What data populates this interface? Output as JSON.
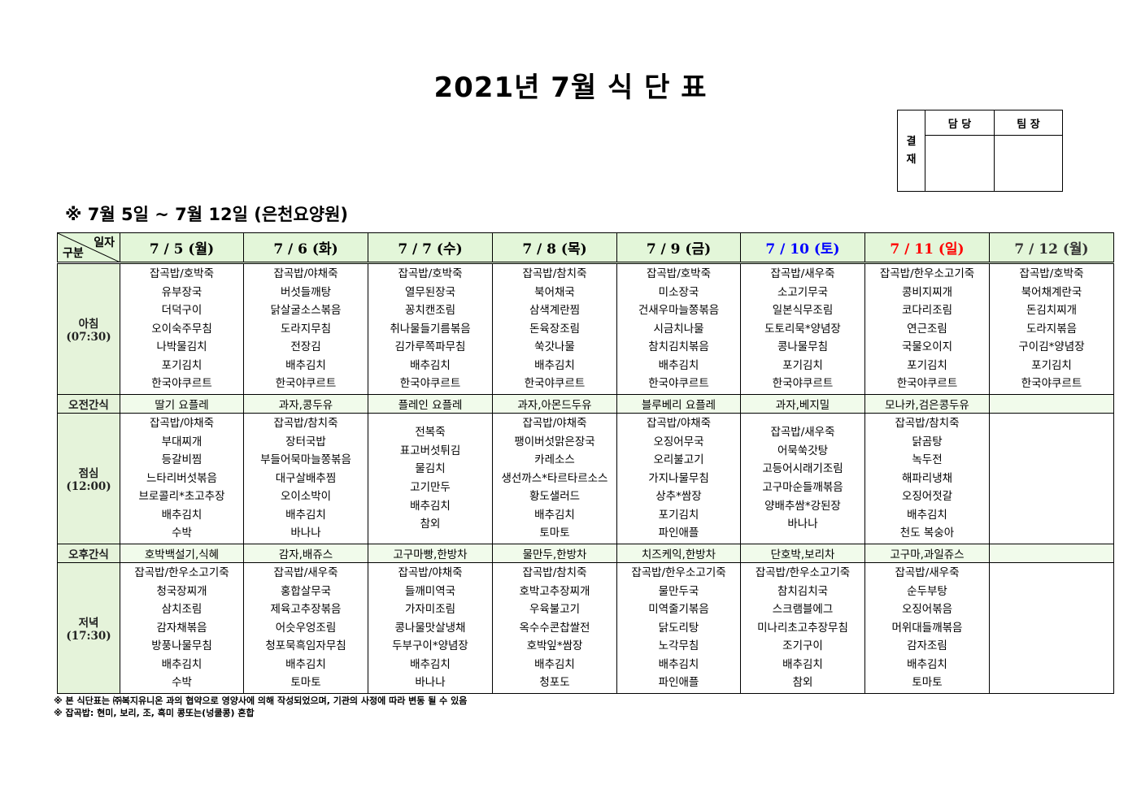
{
  "title": "2021년 7월 식 단 표",
  "approval": {
    "label": "결\n재",
    "label_lines": [
      "결",
      "재"
    ],
    "col1": "담 당",
    "col2": "팀 장"
  },
  "range": "※ 7월 5일 ~ 7월 12일 (은천요양원)",
  "colors": {
    "header_bg": "#e3f6d9",
    "saturday": "#0000ff",
    "sunday": "#ff0000",
    "snack_bg": "#f1fbeb"
  },
  "corner": {
    "top": "일자",
    "bottom": "구분"
  },
  "days": [
    {
      "label": "7 / 5 (월)",
      "color": "#000000"
    },
    {
      "label": "7 / 6 (화)",
      "color": "#000000"
    },
    {
      "label": "7 / 7 (수)",
      "color": "#000000"
    },
    {
      "label": "7 / 8 (목)",
      "color": "#000000"
    },
    {
      "label": "7 / 9 (금)",
      "color": "#000000"
    },
    {
      "label": "7 / 10 (토)",
      "color": "#0000ff"
    },
    {
      "label": "7 / 11 (일)",
      "color": "#ff0000"
    },
    {
      "label": "7 / 12 (월)",
      "color": "#333333"
    }
  ],
  "rows": [
    {
      "type": "meal",
      "name": "아침",
      "time": "(07:30)",
      "cells": [
        [
          "잡곡밥/호박죽",
          "유부장국",
          "더덕구이",
          "오이숙주무침",
          "나박물김치",
          "포기김치",
          "한국야쿠르트"
        ],
        [
          "잡곡밥/야채죽",
          "버섯들깨탕",
          "닭살굴소스볶음",
          "도라지무침",
          "전장김",
          "배추김치",
          "한국야쿠르트"
        ],
        [
          "잡곡밥/호박죽",
          "열무된장국",
          "꽁치캔조림",
          "취나물들기름볶음",
          "김가루쪽파무침",
          "배추김치",
          "한국야쿠르트"
        ],
        [
          "잡곡밥/참치죽",
          "북어채국",
          "삼색계란찜",
          "돈육장조림",
          "쑥갓나물",
          "배추김치",
          "한국야쿠르트"
        ],
        [
          "잡곡밥/호박죽",
          "미소장국",
          "건새우마늘쫑볶음",
          "시금치나물",
          "참치김치볶음",
          "배추김치",
          "한국야쿠르트"
        ],
        [
          "잡곡밥/새우죽",
          "소고기무국",
          "일본식무조림",
          "도토리묵*양념장",
          "콩나물무침",
          "포기김치",
          "한국야쿠르트"
        ],
        [
          "잡곡밥/한우소고기죽",
          "콩비지찌개",
          "코다리조림",
          "연근조림",
          "국물오이지",
          "포기김치",
          "한국야쿠르트"
        ],
        [
          "잡곡밥/호박죽",
          "북어채계란국",
          "돈김치찌개",
          "도라지볶음",
          "구이김*양념장",
          "포기김치",
          "한국야쿠르트"
        ]
      ]
    },
    {
      "type": "snack",
      "name": "오전간식",
      "cells": [
        "딸기 요플레",
        "과자,콩두유",
        "플레인 요플레",
        "과자,아몬드두유",
        "블루베리 요플레",
        "과자,베지밀",
        "모나카,검은콩두유",
        ""
      ]
    },
    {
      "type": "meal",
      "name": "점심",
      "time": "(12:00)",
      "cells": [
        [
          "잡곡밥/야채죽",
          "부대찌개",
          "등갈비찜",
          "느타리버섯볶음",
          "브로콜리*초고추장",
          "배추김치",
          "수박"
        ],
        [
          "잡곡밥/참치죽",
          "장터국밥",
          "부들어묵마늘쫑볶음",
          "대구살배추찜",
          "오이소박이",
          "배추김치",
          "바나나"
        ],
        [
          "전복죽",
          "표고버섯튀김",
          "물김치",
          "고기만두",
          "배추김치",
          "참외"
        ],
        [
          "잡곡밥/야채죽",
          "팽이버섯맑은장국",
          "카레소스",
          "생선까스*타르타르소스",
          "황도샐러드",
          "배추김치",
          "토마토"
        ],
        [
          "잡곡밥/야채죽",
          "오징어무국",
          "오리불고기",
          "가지나물무침",
          "상추*쌈장",
          "포기김치",
          "파인애플"
        ],
        [
          "잡곡밥/새우죽",
          "어묵쑥갓탕",
          "고등어시래기조림",
          "고구마순들깨볶음",
          "양배추쌈*강된장",
          "바나나"
        ],
        [
          "잡곡밥/참치죽",
          "닭곰탕",
          "녹두전",
          "해파리냉채",
          "오징어젓갈",
          "배추김치",
          "천도 복숭아"
        ],
        []
      ]
    },
    {
      "type": "snack",
      "name": "오후간식",
      "cells": [
        "호박백설기,식혜",
        "감자,배쥬스",
        "고구마빵,한방차",
        "물만두,한방차",
        "치즈케익,한방차",
        "단호박,보리차",
        "고구마,과일쥬스",
        ""
      ]
    },
    {
      "type": "meal",
      "name": "저녁",
      "time": "(17:30)",
      "cells": [
        [
          "잡곡밥/한우소고기죽",
          "청국장찌개",
          "삼치조림",
          "감자채볶음",
          "방풍나물무침",
          "배추김치",
          "수박"
        ],
        [
          "잡곡밥/새우죽",
          "홍합살무국",
          "제육고추장볶음",
          "어슷우엉조림",
          "청포묵흑임자무침",
          "배추김치",
          "토마토"
        ],
        [
          "잡곡밥/야채죽",
          "들깨미역국",
          "가자미조림",
          "콩나물맛살냉채",
          "두부구이*양념장",
          "배추김치",
          "바나나"
        ],
        [
          "잡곡밥/참치죽",
          "호박고추장찌개",
          "우육불고기",
          "옥수수콘찹쌀전",
          "호박잎*쌈장",
          "배추김치",
          "청포도"
        ],
        [
          "잡곡밥/한우소고기죽",
          "물만두국",
          "미역줄기볶음",
          "닭도리탕",
          "노각무침",
          "배추김치",
          "파인애플"
        ],
        [
          "잡곡밥/한우소고기죽",
          "참치김치국",
          "스크램블에그",
          "미나리초고추장무침",
          "조기구이",
          "배추김치",
          "참외"
        ],
        [
          "잡곡밥/새우죽",
          "순두부탕",
          "오징어볶음",
          "머위대들깨볶음",
          "감자조림",
          "배추김치",
          "토마토"
        ],
        []
      ]
    }
  ],
  "notes": [
    "※ 본 식단표는 ㈜복지유니온 과의 협약으로 영양사에 의해 작성되었으며, 기관의 사정에 따라 변동 될 수 있음",
    "※ 잡곡밥: 현미, 보리, 조, 흑미 콩또는(넝쿨콩) 혼합"
  ]
}
